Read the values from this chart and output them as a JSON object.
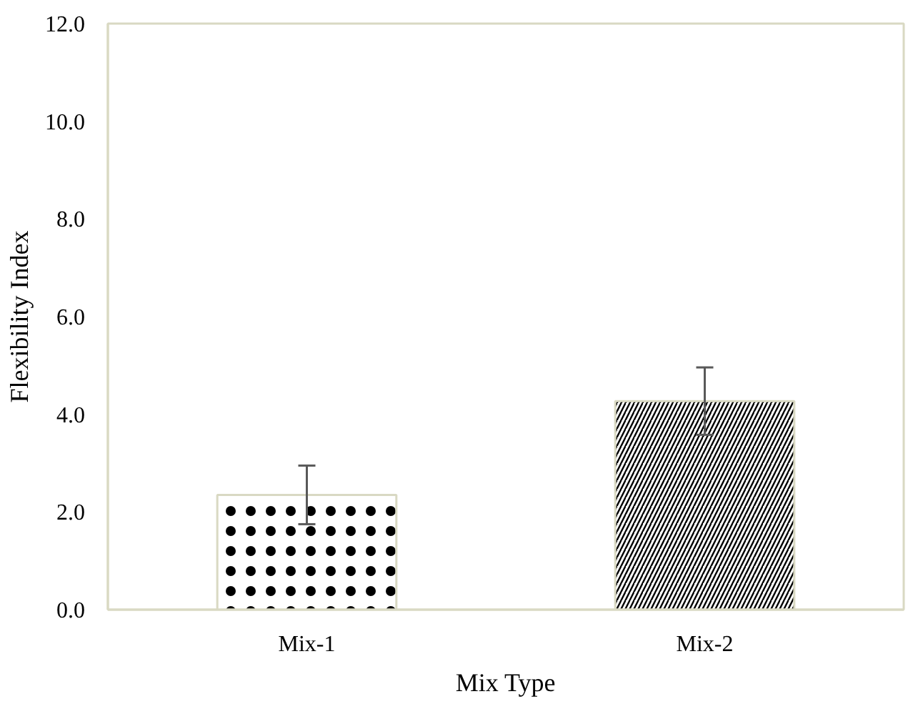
{
  "chart_data": {
    "type": "bar",
    "xlabel": "Mix Type",
    "ylabel": "Flexibility Index",
    "categories": [
      "Mix-1",
      "Mix-2"
    ],
    "values": [
      2.35,
      4.27
    ],
    "errors": [
      0.6,
      0.69
    ],
    "colors": [
      "#ffffff",
      "#ffffff"
    ],
    "ylim": [
      0,
      12
    ],
    "yticks": [
      {
        "value": 0,
        "label": "0.0"
      },
      {
        "value": 2,
        "label": "2.0"
      },
      {
        "value": 4,
        "label": "4.0"
      },
      {
        "value": 6,
        "label": "6.0"
      },
      {
        "value": 8,
        "label": "8.0"
      },
      {
        "value": 10,
        "label": "10.0"
      },
      {
        "value": 12,
        "label": "12.0"
      }
    ],
    "grid": false
  }
}
